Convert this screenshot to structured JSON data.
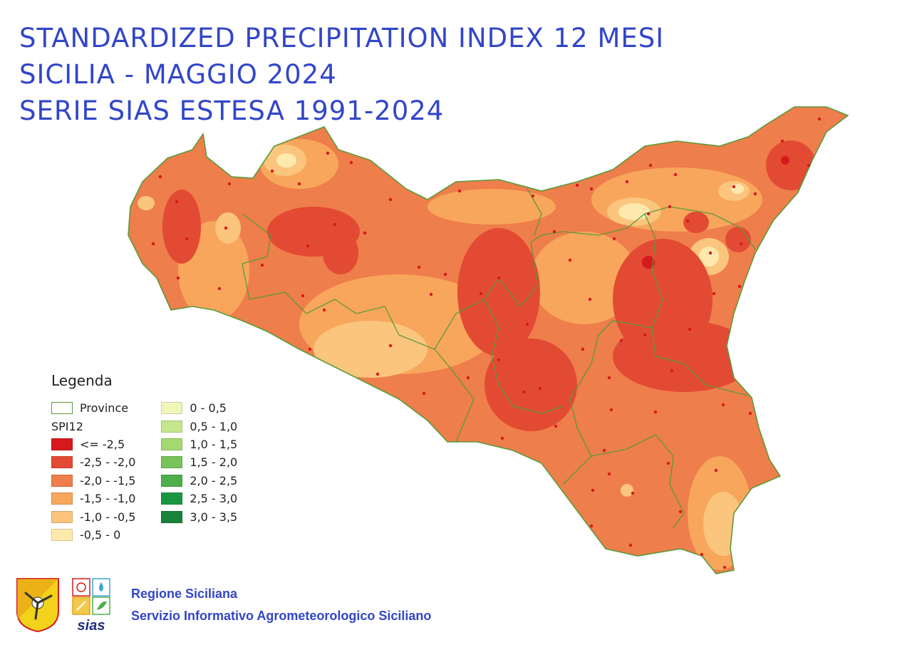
{
  "title": {
    "line1": "STANDARDIZED PRECIPITATION INDEX 12 MESI",
    "line2": "SICILIA - MAGGIO 2024",
    "line3": "SERIE SIAS ESTESA 1991-2024"
  },
  "legend": {
    "title": "Legenda",
    "province_label": "Province",
    "province_color": "#5a9a3a",
    "spi_label": "SPI12",
    "classes": [
      {
        "label": "<= -2,5",
        "color": "#d7191c"
      },
      {
        "label": "-2,5 - -2,0",
        "color": "#e34a33"
      },
      {
        "label": "-2,0 - -1,5",
        "color": "#ee7e4b"
      },
      {
        "label": "-1,5 - -1,0",
        "color": "#f8a65c"
      },
      {
        "label": "-1,0 - -0,5",
        "color": "#fbc57e"
      },
      {
        "label": "-0,5 - 0",
        "color": "#fde9ae"
      },
      {
        "label": "0 - 0,5",
        "color": "#f0f6b8"
      },
      {
        "label": "0,5 - 1,0",
        "color": "#c6e68d"
      },
      {
        "label": "1,0 - 1,5",
        "color": "#a4d870"
      },
      {
        "label": "1,5 - 2,0",
        "color": "#78c35a"
      },
      {
        "label": "2,0 - 2,5",
        "color": "#4daf4a"
      },
      {
        "label": "2,5 - 3,0",
        "color": "#1a9641"
      },
      {
        "label": "3,0 - 3,5",
        "color": "#17823a"
      }
    ]
  },
  "footer": {
    "line1": "Regione Siciliana",
    "line2": "Servizio Informativo Agrometeorologico Siciliano"
  },
  "logos": {
    "sias_text": "sias"
  }
}
